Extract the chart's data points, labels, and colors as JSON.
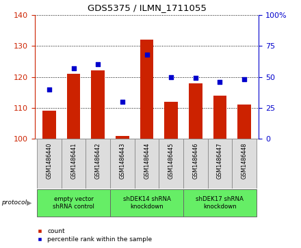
{
  "title": "GDS5375 / ILMN_1711055",
  "samples": [
    "GSM1486440",
    "GSM1486441",
    "GSM1486442",
    "GSM1486443",
    "GSM1486444",
    "GSM1486445",
    "GSM1486446",
    "GSM1486447",
    "GSM1486448"
  ],
  "counts": [
    109,
    121,
    122,
    101,
    132,
    112,
    118,
    114,
    111
  ],
  "percentiles": [
    40,
    57,
    60,
    30,
    68,
    50,
    49,
    46,
    48
  ],
  "ylim_left": [
    100,
    140
  ],
  "ylim_right": [
    0,
    100
  ],
  "yticks_left": [
    100,
    110,
    120,
    130,
    140
  ],
  "ytick_labels_left": [
    "100",
    "110",
    "120",
    "130",
    "140"
  ],
  "yticks_right": [
    0,
    25,
    50,
    75,
    100
  ],
  "ytick_labels_right": [
    "0",
    "25",
    "50",
    "75",
    "100%"
  ],
  "groups": [
    {
      "label": "empty vector\nshRNA control",
      "start": 0,
      "end": 3
    },
    {
      "label": "shDEK14 shRNA\nknockdown",
      "start": 3,
      "end": 6
    },
    {
      "label": "shDEK17 shRNA\nknockdown",
      "start": 6,
      "end": 9
    }
  ],
  "bar_color": "#CC2200",
  "dot_color": "#0000CC",
  "legend_count_label": "count",
  "legend_pct_label": "percentile rank within the sample",
  "protocol_label": "protocol",
  "tick_color_left": "#CC2200",
  "tick_color_right": "#0000CC",
  "group_color": "#66EE66",
  "label_box_color": "#DDDDDD",
  "label_box_edge": "#888888"
}
